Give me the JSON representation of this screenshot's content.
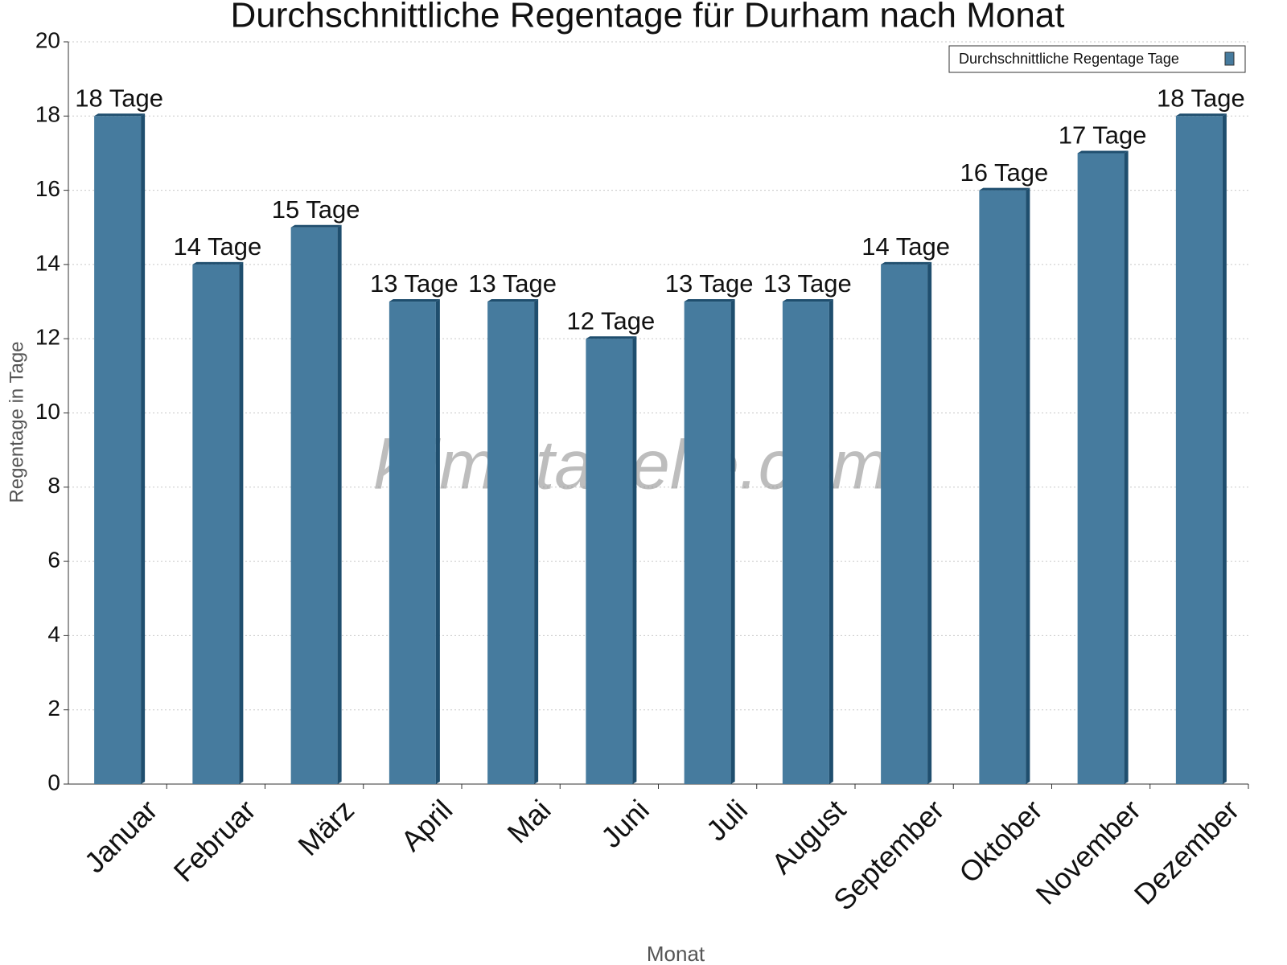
{
  "chart_data": {
    "type": "bar",
    "title": "Durchschnittliche Regentage für Durham nach Monat",
    "xlabel": "Monat",
    "ylabel": "Regentage in Tage",
    "watermark": "klimatabelle.com",
    "categories": [
      "Januar",
      "Februar",
      "März",
      "April",
      "Mai",
      "Juni",
      "Juli",
      "August",
      "September",
      "Oktober",
      "November",
      "Dezember"
    ],
    "series": [
      {
        "name": "Durchschnittliche Regentage Tage",
        "color": "#467b9e",
        "values": [
          18,
          14,
          15,
          13,
          13,
          12,
          13,
          13,
          14,
          16,
          17,
          18
        ],
        "value_labels": [
          "18 Tage",
          "14 Tage",
          "15 Tage",
          "13 Tage",
          "13 Tage",
          "12 Tage",
          "13 Tage",
          "13 Tage",
          "14 Tage",
          "16 Tage",
          "17 Tage",
          "18 Tage"
        ]
      }
    ],
    "ylim": [
      0,
      20
    ],
    "yticks": [
      0,
      2,
      4,
      6,
      8,
      10,
      12,
      14,
      16,
      18,
      20
    ],
    "grid": true,
    "legend": "top-right"
  }
}
